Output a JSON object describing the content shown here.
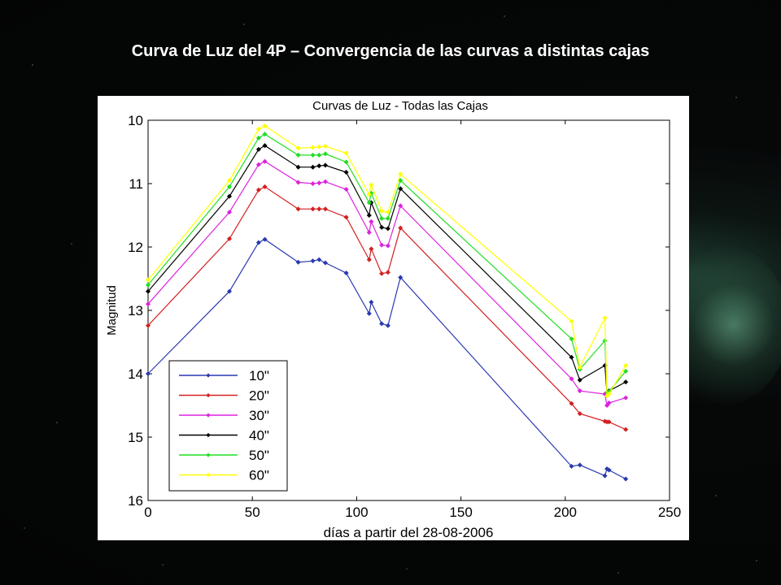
{
  "slide": {
    "title": "Curva de Luz del 4P – Convergencia de las curvas a distintas cajas"
  },
  "colors": {
    "background": "#050606",
    "title_text": "#ffffff",
    "panel": "#ffffff"
  },
  "chart_data": {
    "type": "line",
    "title": "Curvas de Luz - Todas las Cajas",
    "xlabel": "días a partir del 28-08-2006",
    "ylabel": "Magnitud",
    "xlim": [
      0,
      250
    ],
    "ylim": [
      10,
      16
    ],
    "y_inverted": true,
    "x_ticks": [
      "0",
      "50",
      "100",
      "150",
      "200",
      "250"
    ],
    "y_ticks": [
      "10",
      "11",
      "12",
      "13",
      "14",
      "15",
      "16"
    ],
    "grid": false,
    "legend_position": "bottom-left",
    "marker": "diamond",
    "x": [
      0,
      39,
      53,
      56,
      72,
      79,
      82,
      85,
      95,
      106,
      107,
      112,
      115,
      121,
      203,
      207,
      219,
      220,
      221,
      229
    ],
    "series": [
      {
        "name": "10\"",
        "color": "#2a3ab0",
        "values": [
          14.0,
          12.7,
          11.93,
          11.88,
          12.24,
          12.22,
          12.2,
          12.25,
          12.41,
          13.05,
          12.87,
          13.21,
          13.24,
          12.48,
          15.46,
          15.44,
          15.61,
          15.5,
          15.52,
          15.66
        ]
      },
      {
        "name": "20\"",
        "color": "#d42020",
        "values": [
          13.24,
          11.87,
          11.1,
          11.05,
          11.4,
          11.4,
          11.4,
          11.4,
          11.53,
          12.2,
          12.03,
          12.42,
          12.4,
          11.7,
          14.47,
          14.63,
          14.75,
          14.76,
          14.76,
          14.88
        ]
      },
      {
        "name": "30\"",
        "color": "#dd22dd",
        "values": [
          12.9,
          11.45,
          10.7,
          10.65,
          10.98,
          11.0,
          10.99,
          10.97,
          11.09,
          11.77,
          11.6,
          11.97,
          11.98,
          11.35,
          14.08,
          14.27,
          14.32,
          14.5,
          14.46,
          14.38
        ]
      },
      {
        "name": "40\"",
        "color": "#000000",
        "values": [
          12.7,
          11.2,
          10.46,
          10.4,
          10.74,
          10.74,
          10.72,
          10.71,
          10.82,
          11.5,
          11.3,
          11.69,
          11.71,
          11.08,
          13.74,
          14.1,
          13.87,
          14.3,
          14.27,
          14.13
        ]
      },
      {
        "name": "50\"",
        "color": "#22dd22",
        "values": [
          12.6,
          11.05,
          10.28,
          10.22,
          10.55,
          10.55,
          10.55,
          10.53,
          10.66,
          11.3,
          11.15,
          11.55,
          11.55,
          10.95,
          13.45,
          13.93,
          13.48,
          14.3,
          14.28,
          13.96
        ]
      },
      {
        "name": "60\"",
        "color": "#ffff00",
        "values": [
          12.52,
          10.95,
          10.14,
          10.09,
          10.44,
          10.43,
          10.42,
          10.41,
          10.52,
          11.17,
          11.02,
          11.43,
          11.45,
          10.85,
          13.17,
          13.9,
          13.12,
          14.35,
          14.32,
          13.87
        ]
      }
    ]
  }
}
